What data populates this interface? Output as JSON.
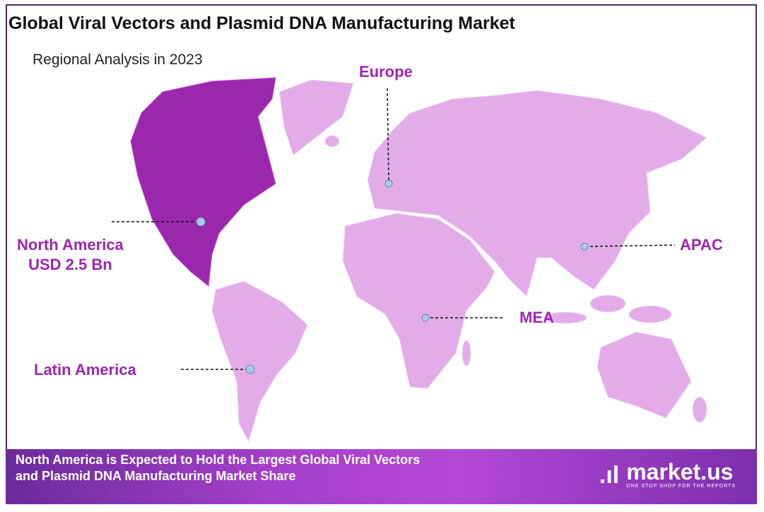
{
  "title": "Global Viral Vectors and Plasmid DNA Manufacturing Market",
  "subtitle": "Regional Analysis in 2023",
  "colors": {
    "highlight_region": "#9b27af",
    "other_regions": "#e3ace9",
    "label": "#9b27af",
    "marker": "#a9c8ec"
  },
  "regions": {
    "europe": {
      "label": "Europe"
    },
    "north_america": {
      "label": "North America",
      "value": "USD 2.5 Bn",
      "highlighted": true
    },
    "apac": {
      "label": "APAC"
    },
    "mea": {
      "label": "MEA"
    },
    "latin_america": {
      "label": "Latin America"
    }
  },
  "footer": {
    "text": "North America is Expected to Hold the Largest Global Viral Vectors and Plasmid DNA Manufacturing Market Share",
    "logo_name": "market.us",
    "logo_tagline": "ONE STOP SHOP FOR THE REPORTS"
  }
}
